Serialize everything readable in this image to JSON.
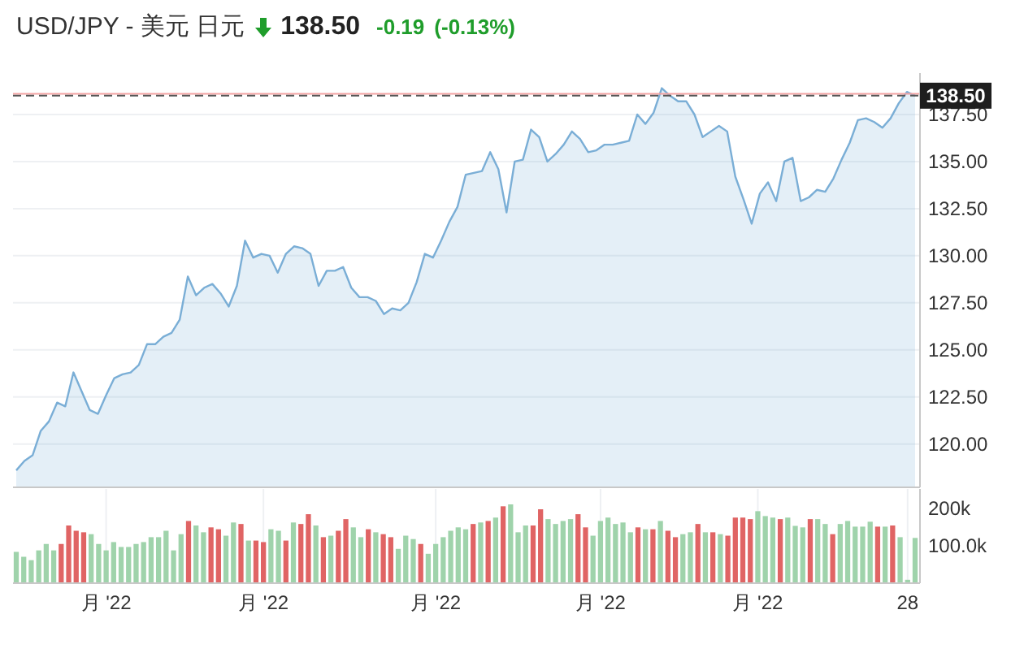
{
  "chart_data": [
    {
      "type": "area",
      "title": "USD/JPY - 美元 日元",
      "annotations": [
        "138.50",
        "-0.19",
        "(-0.13%)"
      ],
      "categories": [
        null,
        null,
        null,
        null,
        null,
        null,
        null,
        null,
        null,
        null,
        null,
        null,
        null,
        null,
        null,
        null,
        null,
        null,
        null,
        null,
        null,
        null,
        null,
        null,
        null,
        null,
        null,
        null,
        null,
        null,
        null,
        null,
        null,
        null,
        null,
        null,
        null,
        null,
        null,
        null,
        null,
        null,
        null,
        null,
        null,
        null,
        null,
        null,
        null,
        null,
        null,
        null,
        null,
        null,
        null,
        null,
        null,
        null,
        null,
        null,
        null,
        null,
        null,
        null,
        null,
        null,
        null,
        null,
        null,
        null,
        null,
        null,
        null,
        null,
        null,
        null,
        null,
        null,
        null,
        null,
        null,
        null,
        null,
        null,
        null,
        null,
        null,
        null,
        null,
        null,
        null,
        null,
        null,
        null,
        null,
        null,
        null,
        null,
        null,
        null,
        null,
        null,
        null,
        null,
        null,
        null,
        null,
        null,
        null,
        null,
        null
      ],
      "series": [
        {
          "color": "#7aaed6",
          "values": [
            118.6,
            119.1,
            119.4,
            120.7,
            121.2,
            122.2,
            122.0,
            123.8,
            122.8,
            121.8,
            121.6,
            122.6,
            123.5,
            123.7,
            123.8,
            124.2,
            125.3,
            125.3,
            125.7,
            125.9,
            126.6,
            128.9,
            127.9,
            128.3,
            128.5,
            128.0,
            127.3,
            128.4,
            130.8,
            129.9,
            130.1,
            130.0,
            129.1,
            130.1,
            130.5,
            130.4,
            130.1,
            128.4,
            129.2,
            129.2,
            129.4,
            128.3,
            127.8,
            127.8,
            127.6,
            126.9,
            127.2,
            127.1,
            127.5,
            128.6,
            130.1,
            129.9,
            130.8,
            131.8,
            132.6,
            134.3,
            134.4,
            134.5,
            135.5,
            134.6,
            132.3,
            135.0,
            135.1,
            136.7,
            136.3,
            135.0,
            135.4,
            135.9,
            136.6,
            136.2,
            135.5,
            135.6,
            135.9,
            135.9,
            136.0,
            136.1,
            137.5,
            137.0,
            137.6,
            138.9,
            138.5,
            138.2,
            138.2,
            137.5,
            136.3,
            136.6,
            136.9,
            136.6,
            134.2,
            133.0,
            131.7,
            133.3,
            133.9,
            132.9,
            135.0,
            135.2,
            132.9,
            133.1,
            133.5,
            133.4,
            134.1,
            135.1,
            136.0,
            137.2,
            137.3,
            137.1,
            136.8,
            137.3,
            138.1,
            138.7,
            138.5
          ]
        }
      ],
      "ylim": [
        117.7,
        139.7
      ],
      "yticks": [
        {
          "value": 120,
          "label": "120.00"
        },
        {
          "value": 122.5,
          "label": "122.50"
        },
        {
          "value": 125,
          "label": "125.00"
        },
        {
          "value": 127.5,
          "label": "127.50"
        },
        {
          "value": 130,
          "label": "130.00"
        },
        {
          "value": 132.5,
          "label": "132.50"
        },
        {
          "value": 135,
          "label": "135.00"
        },
        {
          "value": 137.5,
          "label": "137.50"
        }
      ],
      "ref_lines": [
        {
          "axis": "y",
          "value": 138.6,
          "color": "#f4a3a3",
          "line_style": "solid"
        },
        {
          "axis": "y",
          "value": 138.5,
          "label": "138.50",
          "color": "#555555",
          "line_style": "dashed"
        }
      ],
      "grid": "y",
      "tick_labels": "y"
    },
    {
      "type": "bar",
      "categories": [
        null,
        null,
        null,
        null,
        null,
        null,
        null,
        null,
        null,
        null,
        null,
        null,
        "月 '22",
        null,
        null,
        null,
        null,
        null,
        null,
        null,
        null,
        null,
        null,
        null,
        null,
        null,
        null,
        null,
        null,
        null,
        null,
        null,
        null,
        "月 '22",
        null,
        null,
        null,
        null,
        null,
        null,
        null,
        null,
        null,
        null,
        null,
        null,
        null,
        null,
        null,
        null,
        null,
        null,
        null,
        null,
        null,
        null,
        "月 '22",
        null,
        null,
        null,
        null,
        null,
        null,
        null,
        null,
        null,
        null,
        null,
        null,
        null,
        null,
        null,
        null,
        null,
        null,
        null,
        null,
        null,
        "月 '22",
        null,
        null,
        null,
        null,
        null,
        null,
        null,
        null,
        null,
        null,
        null,
        null,
        null,
        null,
        null,
        null,
        null,
        null,
        null,
        null,
        "月 '22",
        null,
        null,
        null,
        null,
        null,
        null,
        null,
        null,
        null,
        null,
        null,
        null,
        null,
        null,
        null,
        null,
        null,
        null,
        null,
        "28",
        null
      ],
      "values": [
        83000,
        70000,
        61000,
        87000,
        104000,
        87000,
        104000,
        153000,
        139000,
        135000,
        130000,
        104000,
        87000,
        109000,
        96000,
        96000,
        104000,
        109000,
        122000,
        122000,
        139000,
        87000,
        130000,
        165000,
        153000,
        135000,
        148000,
        143000,
        126000,
        161000,
        157000,
        113000,
        113000,
        109000,
        143000,
        139000,
        113000,
        161000,
        157000,
        183000,
        153000,
        122000,
        126000,
        139000,
        170000,
        148000,
        122000,
        143000,
        135000,
        130000,
        122000,
        91000,
        126000,
        117000,
        104000,
        78000,
        104000,
        122000,
        139000,
        148000,
        143000,
        157000,
        161000,
        165000,
        174000,
        204000,
        209000,
        135000,
        153000,
        153000,
        196000,
        170000,
        157000,
        165000,
        170000,
        183000,
        148000,
        126000,
        165000,
        174000,
        157000,
        161000,
        135000,
        148000,
        143000,
        143000,
        165000,
        139000,
        122000,
        130000,
        135000,
        157000,
        135000,
        135000,
        130000,
        126000,
        174000,
        174000,
        170000,
        191000,
        178000,
        174000,
        170000,
        174000,
        152000,
        148000,
        170000,
        170000,
        157000,
        130000,
        157000,
        165000,
        150000,
        150000,
        163000,
        150000,
        150000,
        153000,
        122000,
        9000,
        120000
      ],
      "colors": [
        "#9fd3ab",
        "#9fd3ab",
        "#9fd3ab",
        "#9fd3ab",
        "#9fd3ab",
        "#9fd3ab",
        "#e06464",
        "#e06464",
        "#e06464",
        "#e06464",
        "#9fd3ab",
        "#9fd3ab",
        "#9fd3ab",
        "#9fd3ab",
        "#9fd3ab",
        "#9fd3ab",
        "#9fd3ab",
        "#9fd3ab",
        "#9fd3ab",
        "#9fd3ab",
        "#9fd3ab",
        "#9fd3ab",
        "#9fd3ab",
        "#e06464",
        "#9fd3ab",
        "#9fd3ab",
        "#e06464",
        "#e06464",
        "#9fd3ab",
        "#9fd3ab",
        "#e06464",
        "#9fd3ab",
        "#e06464",
        "#e06464",
        "#9fd3ab",
        "#9fd3ab",
        "#e06464",
        "#9fd3ab",
        "#e06464",
        "#e06464",
        "#9fd3ab",
        "#e06464",
        "#9fd3ab",
        "#e06464",
        "#e06464",
        "#9fd3ab",
        "#9fd3ab",
        "#e06464",
        "#9fd3ab",
        "#e06464",
        "#e06464",
        "#9fd3ab",
        "#9fd3ab",
        "#9fd3ab",
        "#e06464",
        "#9fd3ab",
        "#9fd3ab",
        "#9fd3ab",
        "#9fd3ab",
        "#9fd3ab",
        "#9fd3ab",
        "#e06464",
        "#9fd3ab",
        "#e06464",
        "#9fd3ab",
        "#e06464",
        "#9fd3ab",
        "#9fd3ab",
        "#9fd3ab",
        "#e06464",
        "#e06464",
        "#9fd3ab",
        "#9fd3ab",
        "#9fd3ab",
        "#9fd3ab",
        "#e06464",
        "#e06464",
        "#9fd3ab",
        "#9fd3ab",
        "#9fd3ab",
        "#9fd3ab",
        "#9fd3ab",
        "#9fd3ab",
        "#e06464",
        "#9fd3ab",
        "#e06464",
        "#9fd3ab",
        "#e06464",
        "#e06464",
        "#9fd3ab",
        "#9fd3ab",
        "#e06464",
        "#9fd3ab",
        "#e06464",
        "#9fd3ab",
        "#e06464",
        "#e06464",
        "#e06464",
        "#e06464",
        "#9fd3ab",
        "#9fd3ab",
        "#9fd3ab",
        "#e06464",
        "#9fd3ab",
        "#9fd3ab",
        "#9fd3ab",
        "#e06464",
        "#9fd3ab",
        "#9fd3ab",
        "#e06464",
        "#9fd3ab",
        "#9fd3ab",
        "#9fd3ab",
        "#9fd3ab",
        "#9fd3ab",
        "#e06464",
        "#9fd3ab",
        "#e06464",
        "#9fd3ab",
        "#9fd3ab",
        "#9fd3ab"
      ],
      "ylim": [
        0,
        250000
      ],
      "yticks": [
        {
          "value": 100000,
          "label": "100.0k"
        },
        {
          "value": 200000,
          "label": "200k"
        }
      ],
      "grid": "x"
    }
  ]
}
